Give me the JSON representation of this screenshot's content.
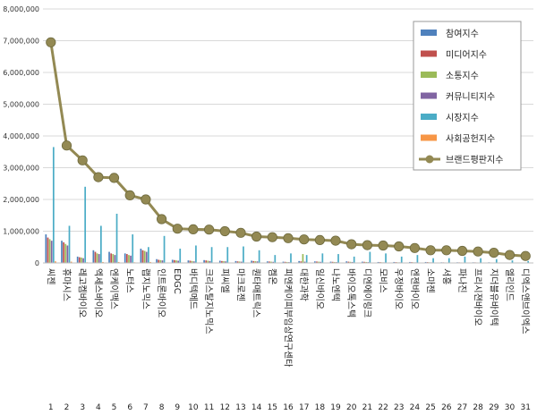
{
  "chart_data": {
    "type": "bar",
    "y_ticks": [
      "0",
      "1,000,000",
      "2,000,000",
      "3,000,000",
      "4,000,000",
      "5,000,000",
      "6,000,000",
      "7,000,000",
      "8,000,000"
    ],
    "ylim": [
      0,
      8000000
    ],
    "grid": true,
    "legend_position": "top-right",
    "categories": [
      "씨젠",
      "휴마시스",
      "레고켐바이오",
      "엑세스바이오",
      "엔케이맥스",
      "노터스",
      "랩지노믹스",
      "인트론바이오",
      "EDGC",
      "바디텍메드",
      "크리스탈지노믹스",
      "피씨엘",
      "마크로젠",
      "퀀타매트릭스",
      "켐온",
      "피엔케이피부임상연구센타",
      "대한과학",
      "일신바이오",
      "나노엔텍",
      "바이오톡스텍",
      "디엔에이링크",
      "모비스",
      "우정바이오",
      "엔젠바이오",
      "소마젠",
      "서흥",
      "파나진",
      "프리시젼바이오",
      "지더블유바이텍",
      "엘리인드",
      "디엑스앤브이엑스"
    ],
    "ranks": [
      "1",
      "2",
      "3",
      "4",
      "5",
      "6",
      "7",
      "8",
      "9",
      "10",
      "11",
      "12",
      "13",
      "14",
      "15",
      "16",
      "17",
      "18",
      "19",
      "20",
      "21",
      "22",
      "23",
      "24",
      "25",
      "26",
      "27",
      "28",
      "29",
      "30",
      "31"
    ],
    "series": [
      {
        "name": "참여지수",
        "kind": "bar",
        "color": "#4f81bd",
        "values": [
          900000,
          700000,
          200000,
          400000,
          350000,
          300000,
          450000,
          120000,
          100000,
          80000,
          90000,
          70000,
          60000,
          70000,
          50000,
          40000,
          60000,
          50000,
          40000,
          50000,
          40000,
          30000,
          30000,
          30000,
          30000,
          20000,
          20000,
          20000,
          20000,
          10000,
          10000
        ]
      },
      {
        "name": "미디어지수",
        "kind": "bar",
        "color": "#c0504d",
        "values": [
          800000,
          650000,
          180000,
          350000,
          300000,
          280000,
          400000,
          100000,
          90000,
          70000,
          80000,
          60000,
          50000,
          60000,
          45000,
          35000,
          50000,
          45000,
          35000,
          40000,
          35000,
          25000,
          25000,
          25000,
          25000,
          18000,
          18000,
          18000,
          15000,
          10000,
          8000
        ]
      },
      {
        "name": "소통지수",
        "kind": "bar",
        "color": "#9bbb59",
        "values": [
          750000,
          600000,
          170000,
          300000,
          280000,
          250000,
          380000,
          90000,
          80000,
          60000,
          70000,
          55000,
          45000,
          55000,
          40000,
          30000,
          280000,
          40000,
          30000,
          35000,
          30000,
          20000,
          20000,
          20000,
          20000,
          15000,
          15000,
          15000,
          12000,
          8000,
          6000
        ]
      },
      {
        "name": "커뮤니티지수",
        "kind": "bar",
        "color": "#8064a2",
        "values": [
          700000,
          550000,
          150000,
          280000,
          250000,
          230000,
          350000,
          80000,
          70000,
          50000,
          60000,
          50000,
          40000,
          50000,
          35000,
          25000,
          40000,
          35000,
          25000,
          30000,
          25000,
          18000,
          18000,
          18000,
          18000,
          12000,
          12000,
          12000,
          10000,
          6000,
          5000
        ]
      },
      {
        "name": "시장지수",
        "kind": "bar",
        "color": "#4bacc6",
        "values": [
          3650000,
          1170000,
          2400000,
          1170000,
          1550000,
          900000,
          500000,
          850000,
          450000,
          550000,
          500000,
          500000,
          520000,
          400000,
          250000,
          300000,
          250000,
          300000,
          280000,
          200000,
          350000,
          300000,
          200000,
          250000,
          150000,
          150000,
          200000,
          150000,
          120000,
          80000,
          60000
        ]
      },
      {
        "name": "사회공헌지수",
        "kind": "bar",
        "color": "#f79646",
        "values": [
          50000,
          40000,
          20000,
          30000,
          30000,
          20000,
          30000,
          10000,
          10000,
          10000,
          10000,
          10000,
          10000,
          10000,
          10000,
          10000,
          10000,
          10000,
          10000,
          10000,
          10000,
          10000,
          10000,
          10000,
          10000,
          10000,
          10000,
          10000,
          10000,
          10000,
          10000
        ]
      },
      {
        "name": "브랜드평판지수",
        "kind": "line",
        "color": "#938953",
        "values": [
          6950000,
          3700000,
          3230000,
          2700000,
          2680000,
          2130000,
          2000000,
          1380000,
          1080000,
          1060000,
          1050000,
          1000000,
          950000,
          830000,
          810000,
          780000,
          740000,
          720000,
          700000,
          590000,
          560000,
          550000,
          520000,
          470000,
          400000,
          400000,
          380000,
          360000,
          320000,
          250000,
          220000
        ]
      }
    ]
  }
}
